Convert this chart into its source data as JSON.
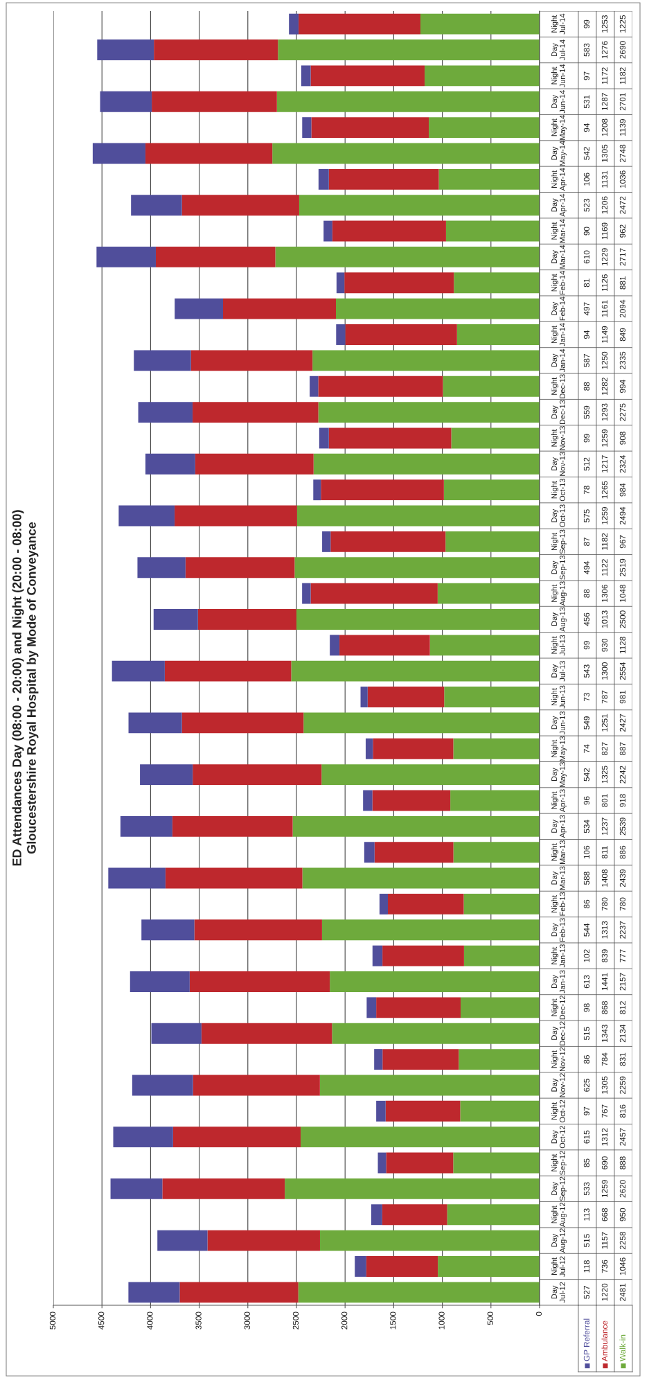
{
  "chart_data": {
    "type": "bar",
    "orientation": "horizontal",
    "stacked": true,
    "title": "ED Attendances Day (08:00 - 20:00) and Night (20:00 - 08:00)",
    "subtitle": "Gloucestershire Royal Hospital by Mode of Conveyance",
    "categories": [
      "Night Jul-14",
      "Day Jul-14",
      "Night Jun-14",
      "Day Jun-14",
      "Night May-14",
      "Day May-14",
      "Night Apr-14",
      "Day Apr-14",
      "Night Mar-14",
      "Day Mar-14",
      "Night Feb-14",
      "Day Feb-14",
      "Night Jan-14",
      "Day Jan-14",
      "Night Dec-13",
      "Day Dec-13",
      "Night Nov-13",
      "Day Nov-13",
      "Night Oct-13",
      "Day Oct-13",
      "Night Sep-13",
      "Day Sep-13",
      "Night Aug-13",
      "Day Aug-13",
      "Night Jul-13",
      "Day Jul-13",
      "Night Jun-13",
      "Day Jun-13",
      "Night May-13",
      "Day May-13",
      "Night Apr-13",
      "Day Apr-13",
      "Night Mar-13",
      "Day Mar-13",
      "Night Feb-13",
      "Day Feb-13",
      "Night Jan-13",
      "Day Jan-13",
      "Night Dec-12",
      "Day Dec-12",
      "Night Nov-12",
      "Day Nov-12",
      "Night Oct-12",
      "Day Oct-12",
      "Night Sep-12",
      "Day Sep-12",
      "Night Aug-12",
      "Day Aug-12",
      "Night Jul-12",
      "Day Jul-12"
    ],
    "series": [
      {
        "name": "Walk-in",
        "color": "#6eaa3c",
        "values": [
          1225,
          2690,
          1182,
          2701,
          1139,
          2748,
          1036,
          2472,
          962,
          2717,
          881,
          2094,
          849,
          2335,
          994,
          2275,
          908,
          2324,
          984,
          2494,
          967,
          2519,
          1048,
          2500,
          1128,
          2554,
          981,
          2427,
          887,
          2242,
          918,
          2539,
          886,
          2439,
          780,
          2237,
          777,
          2157,
          812,
          2134,
          831,
          2259,
          816,
          2457,
          888,
          2620,
          950,
          2258,
          1046,
          2481
        ]
      },
      {
        "name": "Ambulance",
        "color": "#be282d",
        "values": [
          1253,
          1276,
          1172,
          1287,
          1208,
          1305,
          1131,
          1206,
          1169,
          1229,
          1126,
          1161,
          1149,
          1250,
          1282,
          1293,
          1259,
          1217,
          1265,
          1259,
          1182,
          1122,
          1306,
          1013,
          930,
          1300,
          787,
          1251,
          827,
          1325,
          801,
          1237,
          811,
          1408,
          780,
          1313,
          839,
          1441,
          868,
          1343,
          784,
          1305,
          767,
          1312,
          690,
          1259,
          668,
          1157,
          736,
          1220
        ]
      },
      {
        "name": "GP Referral",
        "color": "#504e9b",
        "values": [
          99,
          583,
          97,
          531,
          94,
          542,
          106,
          523,
          90,
          610,
          81,
          497,
          94,
          587,
          88,
          559,
          99,
          512,
          78,
          575,
          87,
          494,
          88,
          456,
          99,
          543,
          73,
          549,
          74,
          542,
          96,
          534,
          106,
          588,
          86,
          544,
          102,
          613,
          98,
          515,
          86,
          625,
          97,
          615,
          85,
          533,
          113,
          515,
          118,
          527
        ]
      }
    ],
    "xlim": [
      5000,
      0
    ],
    "xticks": [
      0,
      500,
      1000,
      1500,
      2000,
      2500,
      3000,
      3500,
      4000,
      4500,
      5000
    ],
    "grid": "x",
    "legend": "bottom right",
    "data_labels": true
  }
}
